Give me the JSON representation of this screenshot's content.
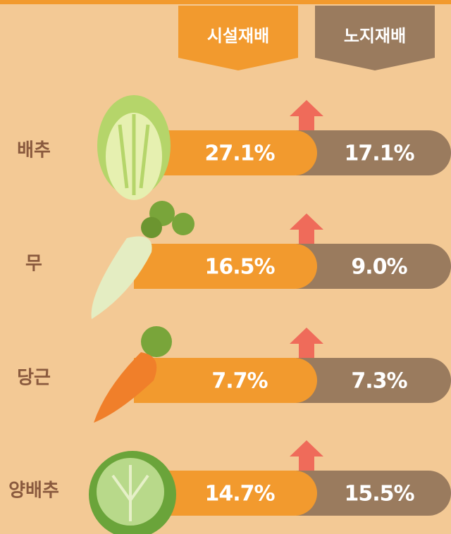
{
  "header": {
    "columns": [
      "시설재배",
      "노지재배"
    ]
  },
  "rows": [
    {
      "label": "배추",
      "values": [
        "27.1%",
        "17.1%"
      ]
    },
    {
      "label": "무",
      "values": [
        "16.5%",
        "9.0%"
      ]
    },
    {
      "label": "당근",
      "values": [
        "7.7%",
        "7.3%"
      ]
    },
    {
      "label": "양배추",
      "values": [
        "14.7%",
        "15.5%"
      ]
    }
  ]
}
